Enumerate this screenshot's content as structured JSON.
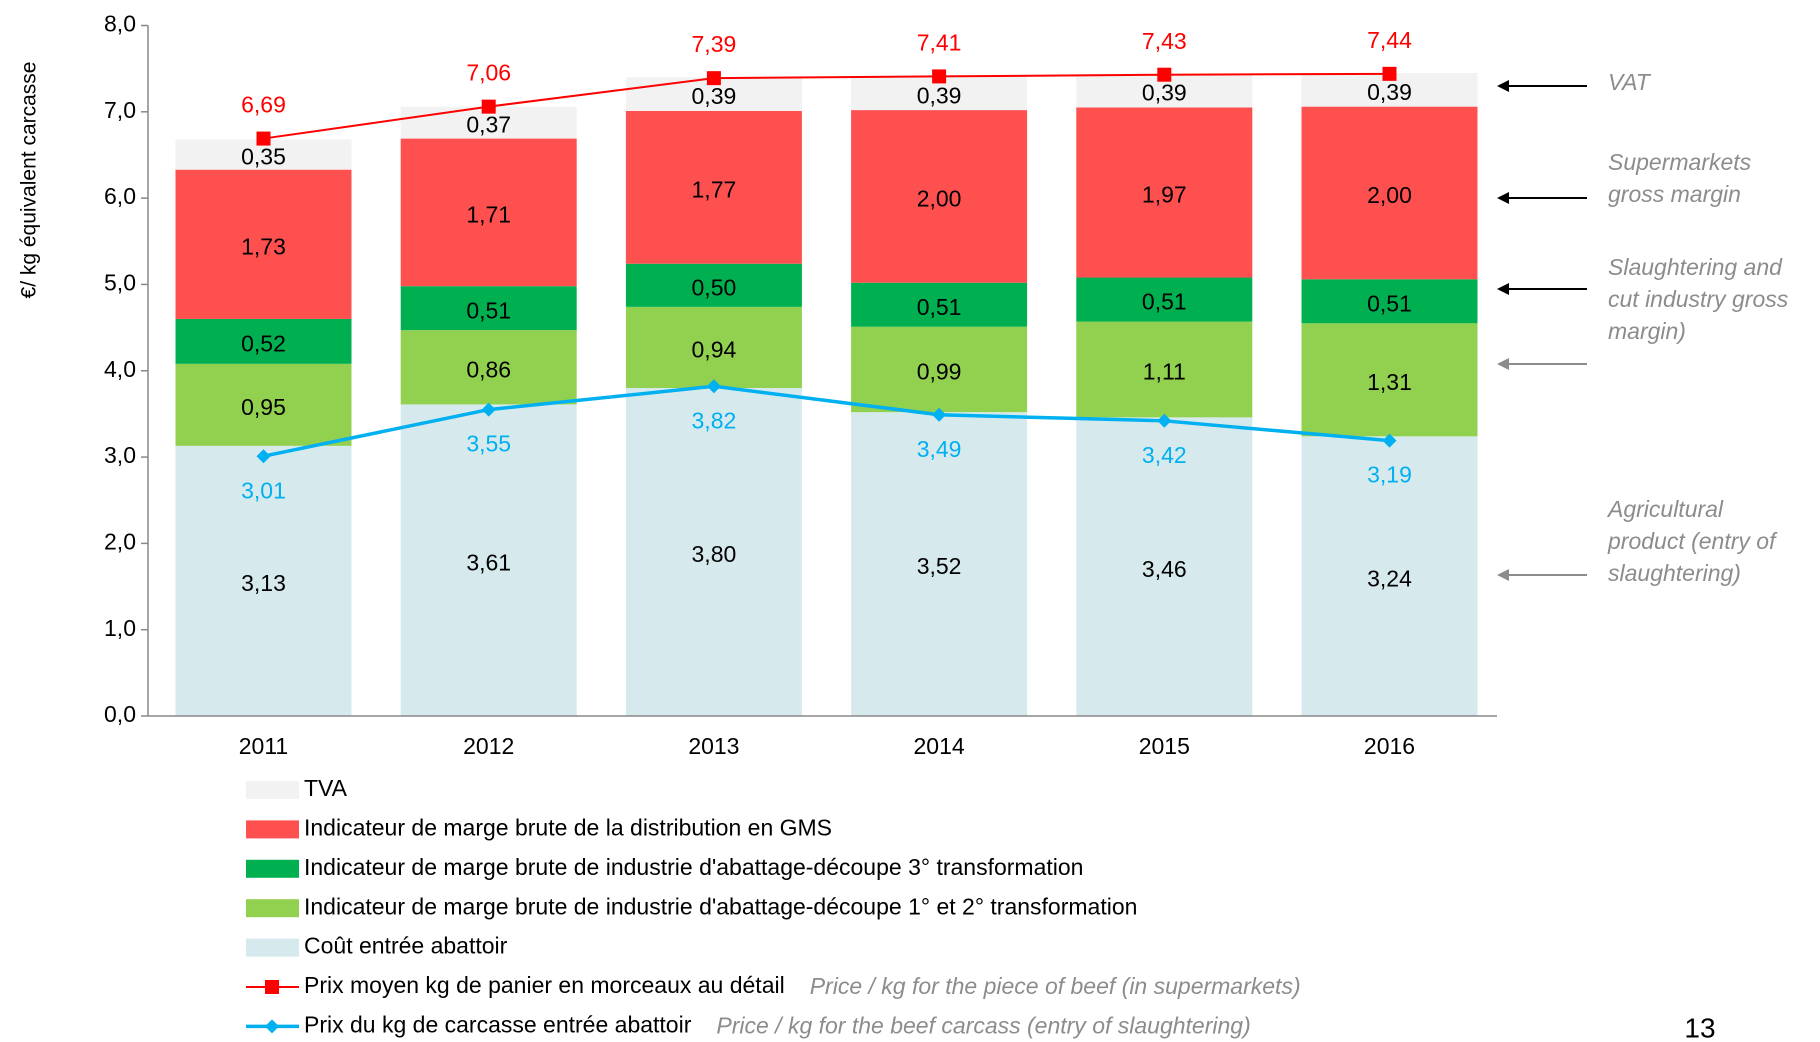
{
  "chart_data": {
    "type": "bar",
    "stacked": true,
    "y_label": "€/ kg équivalent carcasse",
    "categories": [
      "2011",
      "2012",
      "2013",
      "2014",
      "2015",
      "2016"
    ],
    "ylim": [
      0,
      8
    ],
    "yticks": [
      {
        "value": 0,
        "label": "0,0"
      },
      {
        "value": 1,
        "label": "1,0"
      },
      {
        "value": 2,
        "label": "2,0"
      },
      {
        "value": 3,
        "label": "3,0"
      },
      {
        "value": 4,
        "label": "4,0"
      },
      {
        "value": 5,
        "label": "5,0"
      },
      {
        "value": 6,
        "label": "6,0"
      },
      {
        "value": 7,
        "label": "7,0"
      },
      {
        "value": 8,
        "label": "8,0"
      }
    ],
    "series": [
      {
        "name": "Coût entrée abattoir",
        "type": "bar",
        "color": "#d6eaee",
        "values": [
          3.13,
          3.61,
          3.8,
          3.52,
          3.46,
          3.24
        ],
        "value_labels": [
          "3,13",
          "3,61",
          "3,80",
          "3,52",
          "3,46",
          "3,24"
        ]
      },
      {
        "name": "Indicateur de marge brute de industrie d'abattage-découpe 1° et 2° transformation",
        "type": "bar",
        "color": "#92d050",
        "values": [
          0.95,
          0.86,
          0.94,
          0.99,
          1.11,
          1.31
        ],
        "value_labels": [
          "0,95",
          "0,86",
          "0,94",
          "0,99",
          "1,11",
          "1,31"
        ]
      },
      {
        "name": "Indicateur de marge brute de industrie d'abattage-découpe 3° transformation",
        "type": "bar",
        "color": "#00b050",
        "values": [
          0.52,
          0.51,
          0.5,
          0.51,
          0.51,
          0.51
        ],
        "value_labels": [
          "0,52",
          "0,51",
          "0,50",
          "0,51",
          "0,51",
          "0,51"
        ]
      },
      {
        "name": "Indicateur de marge brute de la distribution en GMS",
        "type": "bar",
        "color": "#ff5050",
        "values": [
          1.73,
          1.71,
          1.77,
          2.0,
          1.97,
          2.0
        ],
        "value_labels": [
          "1,73",
          "1,71",
          "1,77",
          "2,00",
          "1,97",
          "2,00"
        ]
      },
      {
        "name": "TVA",
        "type": "bar",
        "color": "#f2f2f2",
        "values": [
          0.35,
          0.37,
          0.39,
          0.39,
          0.39,
          0.39
        ],
        "value_labels": [
          "0,35",
          "0,37",
          "0,39",
          "0,39",
          "0,39",
          "0,39"
        ]
      },
      {
        "name": "Prix moyen kg de panier en morceaux au détail",
        "type": "line",
        "marker": "square",
        "color": "#ff0000",
        "note": "Price / kg for the piece of beef (in supermarkets)",
        "values": [
          6.69,
          7.06,
          7.39,
          7.41,
          7.43,
          7.44
        ],
        "value_labels": [
          "6,69",
          "7,06",
          "7,39",
          "7,41",
          "7,43",
          "7,44"
        ]
      },
      {
        "name": "Prix du kg de carcasse  entrée abattoir",
        "type": "line",
        "marker": "diamond",
        "color": "#00b0f0",
        "note": "Price / kg for the beef carcass (entry of slaughtering)",
        "values": [
          3.01,
          3.55,
          3.82,
          3.49,
          3.42,
          3.19
        ],
        "value_labels": [
          "3,01",
          "3,55",
          "3,82",
          "3,49",
          "3,42",
          "3,19"
        ]
      }
    ],
    "annotations": [
      {
        "lines": [
          "VAT"
        ],
        "arrow_color": "#000000"
      },
      {
        "lines": [
          "Supermarkets",
          "gross margin"
        ],
        "arrow_color": "#000000"
      },
      {
        "lines": [
          "Slaughtering and",
          "cut industry gross",
          "margin)"
        ],
        "arrow_color": "#000000"
      },
      {
        "lines": [],
        "arrow_color": "#8c8c8c"
      },
      {
        "lines": [
          "Agricultural",
          "product (entry of",
          "slaughtering)"
        ],
        "arrow_color": "#8c8c8c"
      }
    ],
    "page_number": "13"
  }
}
